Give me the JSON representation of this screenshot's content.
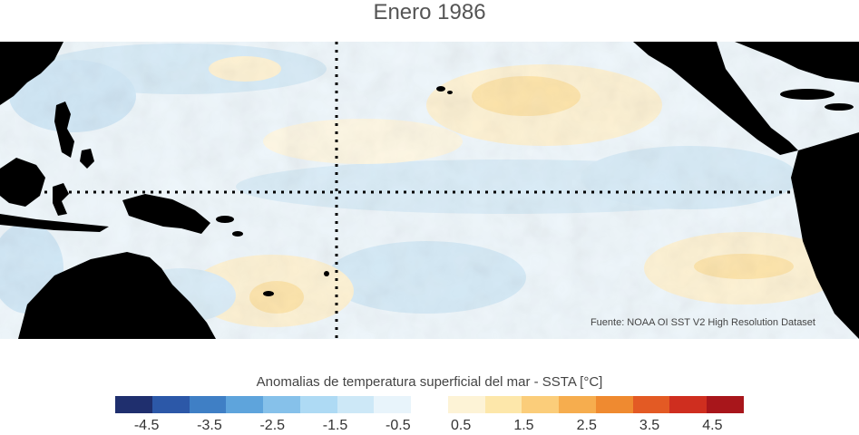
{
  "title": "Enero 1986",
  "source": "Fuente: NOAA OI SST V2 High Resolution Dataset",
  "colorbar": {
    "label": "Anomalias de temperatura superficial del mar - SSTA  [°C]",
    "colors": [
      "#1f2f6e",
      "#2c58a8",
      "#3f7fc5",
      "#5ea4dc",
      "#86c1ea",
      "#aedaf4",
      "#cde8f7",
      "#e8f4fb",
      "#ffffff",
      "#fdf3d6",
      "#fde7aa",
      "#fbcd7a",
      "#f6ad4e",
      "#ef8a30",
      "#e35a24",
      "#cf2e1f",
      "#a8161b"
    ],
    "tick_values": [
      -4.5,
      -3.5,
      -2.5,
      -1.5,
      -0.5,
      0.5,
      1.5,
      2.5,
      3.5,
      4.5
    ],
    "tick_labels": [
      "-4.5",
      "-3.5",
      "-2.5",
      "-1.5",
      "-0.5",
      "0.5",
      "1.5",
      "2.5",
      "3.5",
      "4.5"
    ],
    "range": [
      -5,
      5
    ]
  }
}
